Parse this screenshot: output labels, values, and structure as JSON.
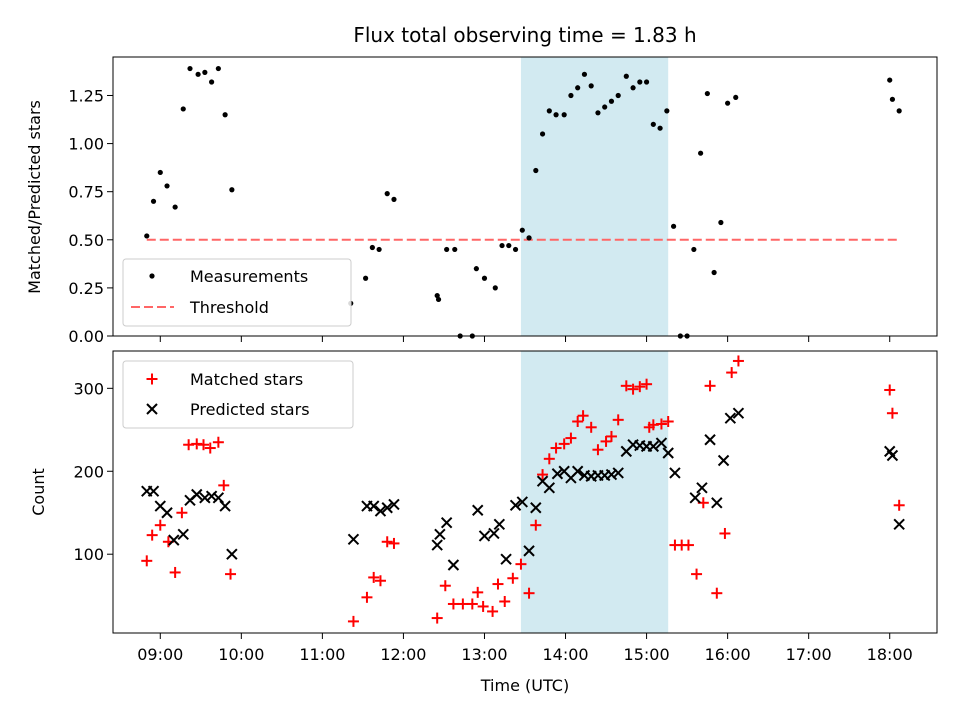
{
  "title": "Flux total observing time = 1.83 h",
  "colors": {
    "measurement": "#000000",
    "threshold": "#ff6666",
    "matched": "#ff0000",
    "predicted": "#000000",
    "shade": "#add8e6"
  },
  "chart_data": [
    {
      "type": "scatter",
      "ylabel": "Matched/Predicted stars",
      "xlim": [
        "08:25",
        "18:35"
      ],
      "ylim": [
        0,
        1.45
      ],
      "yticks": [
        "0.00",
        "0.25",
        "0.50",
        "0.75",
        "1.00",
        "1.25"
      ],
      "grid": false,
      "legend_position": "lower left",
      "shaded_interval": [
        "13:27",
        "15:16"
      ],
      "threshold": {
        "name": "Threshold",
        "y": 0.5,
        "x_range": [
          "08:50",
          "18:07"
        ],
        "style": "dashed"
      },
      "series": [
        {
          "name": "Measurements",
          "marker": "dot",
          "points": [
            [
              "08:50",
              0.52
            ],
            [
              "08:55",
              0.7
            ],
            [
              "09:00",
              0.85
            ],
            [
              "09:05",
              0.78
            ],
            [
              "09:11",
              0.67
            ],
            [
              "09:17",
              1.18
            ],
            [
              "09:22",
              1.39
            ],
            [
              "09:28",
              1.36
            ],
            [
              "09:33",
              1.37
            ],
            [
              "09:38",
              1.32
            ],
            [
              "09:43",
              1.39
            ],
            [
              "09:48",
              1.15
            ],
            [
              "09:53",
              0.76
            ],
            [
              "11:21",
              0.17
            ],
            [
              "11:32",
              0.3
            ],
            [
              "11:37",
              0.46
            ],
            [
              "11:42",
              0.45
            ],
            [
              "11:48",
              0.74
            ],
            [
              "11:53",
              0.71
            ],
            [
              "12:25",
              0.21
            ],
            [
              "12:26",
              0.19
            ],
            [
              "12:32",
              0.45
            ],
            [
              "12:38",
              0.45
            ],
            [
              "12:42",
              0.0
            ],
            [
              "12:51",
              0.0
            ],
            [
              "12:54",
              0.35
            ],
            [
              "13:00",
              0.3
            ],
            [
              "13:08",
              0.25
            ],
            [
              "13:13",
              0.47
            ],
            [
              "13:18",
              0.47
            ],
            [
              "13:23",
              0.45
            ],
            [
              "13:28",
              0.55
            ],
            [
              "13:33",
              0.51
            ],
            [
              "13:38",
              0.86
            ],
            [
              "13:43",
              1.05
            ],
            [
              "13:48",
              1.17
            ],
            [
              "13:53",
              1.15
            ],
            [
              "13:59",
              1.15
            ],
            [
              "14:04",
              1.25
            ],
            [
              "14:09",
              1.29
            ],
            [
              "14:14",
              1.36
            ],
            [
              "14:19",
              1.3
            ],
            [
              "14:24",
              1.16
            ],
            [
              "14:29",
              1.19
            ],
            [
              "14:34",
              1.22
            ],
            [
              "14:39",
              1.25
            ],
            [
              "14:45",
              1.35
            ],
            [
              "14:50",
              1.29
            ],
            [
              "14:55",
              1.32
            ],
            [
              "15:00",
              1.32
            ],
            [
              "15:05",
              1.1
            ],
            [
              "15:10",
              1.08
            ],
            [
              "15:15",
              1.17
            ],
            [
              "15:20",
              0.57
            ],
            [
              "15:25",
              0.0
            ],
            [
              "15:30",
              0.0
            ],
            [
              "15:35",
              0.45
            ],
            [
              "15:40",
              0.95
            ],
            [
              "15:45",
              1.26
            ],
            [
              "15:50",
              0.33
            ],
            [
              "15:55",
              0.59
            ],
            [
              "16:00",
              1.21
            ],
            [
              "16:06",
              1.24
            ],
            [
              "18:00",
              1.33
            ],
            [
              "18:02",
              1.23
            ],
            [
              "18:07",
              1.17
            ]
          ]
        }
      ]
    },
    {
      "type": "scatter",
      "xlabel": "Time (UTC)",
      "ylabel": "Count",
      "xlim": [
        "08:25",
        "18:35"
      ],
      "ylim": [
        5,
        345
      ],
      "yticks": [
        "100",
        "200",
        "300"
      ],
      "xticks": [
        "09:00",
        "10:00",
        "11:00",
        "12:00",
        "13:00",
        "14:00",
        "15:00",
        "16:00",
        "17:00",
        "18:00"
      ],
      "grid": false,
      "legend_position": "upper left",
      "shaded_interval": [
        "13:27",
        "15:16"
      ],
      "series": [
        {
          "name": "Matched stars",
          "marker": "plus",
          "points": [
            [
              "08:50",
              92
            ],
            [
              "08:54",
              123
            ],
            [
              "09:00",
              135
            ],
            [
              "09:06",
              115
            ],
            [
              "09:11",
              78
            ],
            [
              "09:16",
              150
            ],
            [
              "09:21",
              232
            ],
            [
              "09:27",
              233
            ],
            [
              "09:32",
              232
            ],
            [
              "09:37",
              228
            ],
            [
              "09:43",
              235
            ],
            [
              "09:47",
              183
            ],
            [
              "09:52",
              76
            ],
            [
              "11:23",
              19
            ],
            [
              "11:33",
              48
            ],
            [
              "11:38",
              72
            ],
            [
              "11:43",
              68
            ],
            [
              "11:48",
              115
            ],
            [
              "11:53",
              113
            ],
            [
              "12:25",
              23
            ],
            [
              "12:31",
              62
            ],
            [
              "12:37",
              40
            ],
            [
              "12:44",
              40
            ],
            [
              "12:51",
              40
            ],
            [
              "12:55",
              54
            ],
            [
              "12:59",
              37
            ],
            [
              "13:06",
              31
            ],
            [
              "13:10",
              64
            ],
            [
              "13:15",
              43
            ],
            [
              "13:21",
              71
            ],
            [
              "13:27",
              88
            ],
            [
              "13:33",
              53
            ],
            [
              "13:38",
              135
            ],
            [
              "13:43",
              196
            ],
            [
              "13:48",
              215
            ],
            [
              "13:53",
              228
            ],
            [
              "13:59",
              233
            ],
            [
              "14:04",
              240
            ],
            [
              "14:09",
              260
            ],
            [
              "14:13",
              267
            ],
            [
              "14:19",
              253
            ],
            [
              "14:24",
              226
            ],
            [
              "14:30",
              236
            ],
            [
              "14:34",
              242
            ],
            [
              "14:39",
              262
            ],
            [
              "14:45",
              303
            ],
            [
              "14:50",
              299
            ],
            [
              "14:55",
              302
            ],
            [
              "15:00",
              305
            ],
            [
              "15:02",
              253
            ],
            [
              "15:05",
              256
            ],
            [
              "15:11",
              257
            ],
            [
              "15:16",
              260
            ],
            [
              "15:21",
              111
            ],
            [
              "15:26",
              111
            ],
            [
              "15:31",
              111
            ],
            [
              "15:37",
              76
            ],
            [
              "15:42",
              162
            ],
            [
              "15:47",
              303
            ],
            [
              "15:52",
              53
            ],
            [
              "15:58",
              125
            ],
            [
              "16:03",
              319
            ],
            [
              "16:08",
              333
            ],
            [
              "18:00",
              298
            ],
            [
              "18:02",
              270
            ],
            [
              "18:07",
              159
            ]
          ]
        },
        {
          "name": "Predicted stars",
          "marker": "x",
          "points": [
            [
              "08:50",
              176
            ],
            [
              "08:55",
              176
            ],
            [
              "09:00",
              158
            ],
            [
              "09:05",
              150
            ],
            [
              "09:10",
              117
            ],
            [
              "09:17",
              124
            ],
            [
              "09:22",
              165
            ],
            [
              "09:27",
              172
            ],
            [
              "09:33",
              168
            ],
            [
              "09:38",
              170
            ],
            [
              "09:43",
              168
            ],
            [
              "09:48",
              158
            ],
            [
              "09:53",
              100
            ],
            [
              "11:23",
              118
            ],
            [
              "11:33",
              158
            ],
            [
              "11:38",
              158
            ],
            [
              "11:43",
              152
            ],
            [
              "11:48",
              156
            ],
            [
              "11:53",
              160
            ],
            [
              "12:25",
              111
            ],
            [
              "12:27",
              124
            ],
            [
              "12:32",
              138
            ],
            [
              "12:37",
              87
            ],
            [
              "12:55",
              153
            ],
            [
              "13:00",
              122
            ],
            [
              "13:07",
              125
            ],
            [
              "13:11",
              136
            ],
            [
              "13:16",
              94
            ],
            [
              "13:23",
              159
            ],
            [
              "13:28",
              163
            ],
            [
              "13:33",
              104
            ],
            [
              "13:38",
              156
            ],
            [
              "13:43",
              188
            ],
            [
              "13:48",
              180
            ],
            [
              "13:54",
              197
            ],
            [
              "13:59",
              200
            ],
            [
              "14:04",
              192
            ],
            [
              "14:09",
              200
            ],
            [
              "14:14",
              195
            ],
            [
              "14:19",
              194
            ],
            [
              "14:24",
              195
            ],
            [
              "14:29",
              195
            ],
            [
              "14:34",
              196
            ],
            [
              "14:39",
              198
            ],
            [
              "14:45",
              224
            ],
            [
              "14:50",
              232
            ],
            [
              "14:55",
              231
            ],
            [
              "15:00",
              230
            ],
            [
              "15:05",
              230
            ],
            [
              "15:11",
              234
            ],
            [
              "15:16",
              222
            ],
            [
              "15:21",
              198
            ],
            [
              "15:36",
              168
            ],
            [
              "15:41",
              180
            ],
            [
              "15:47",
              238
            ],
            [
              "15:52",
              162
            ],
            [
              "15:57",
              213
            ],
            [
              "16:02",
              264
            ],
            [
              "16:08",
              270
            ],
            [
              "18:00",
              224
            ],
            [
              "18:02",
              219
            ],
            [
              "18:07",
              136
            ]
          ]
        }
      ]
    }
  ]
}
